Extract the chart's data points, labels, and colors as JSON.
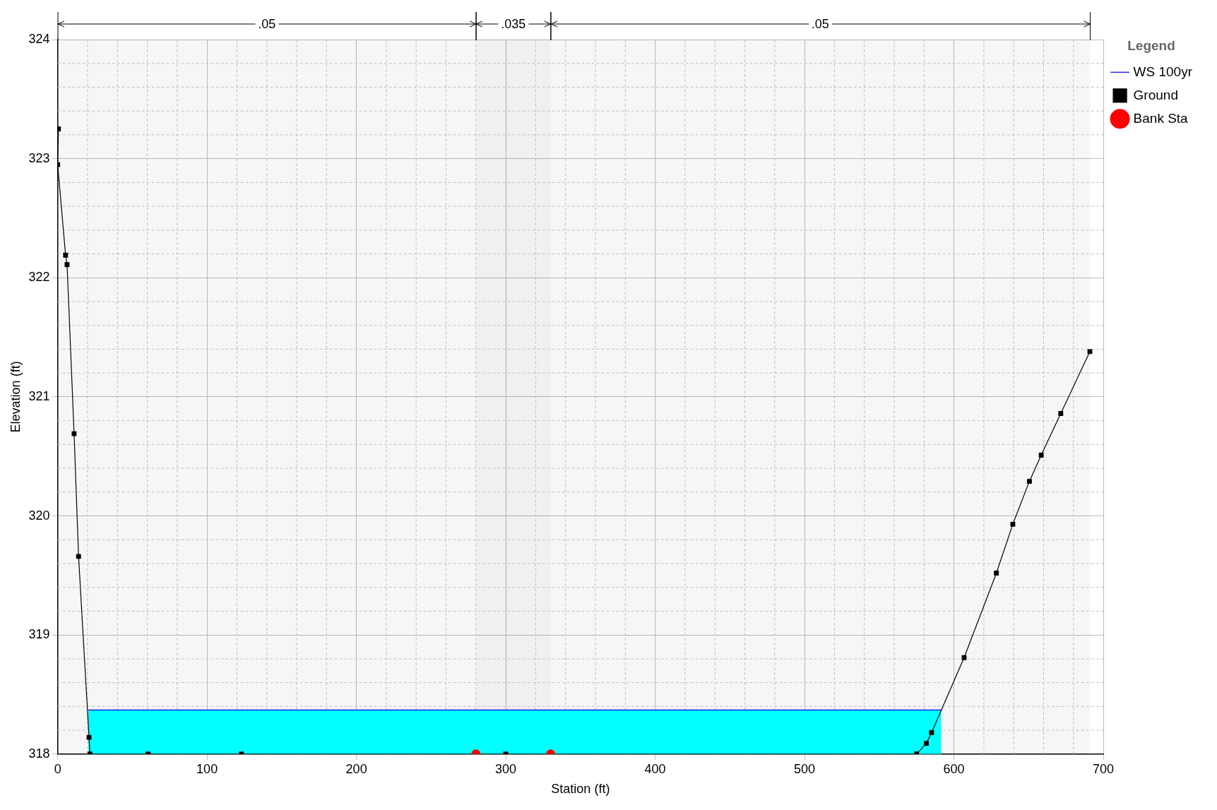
{
  "chart_data": {
    "type": "line",
    "xlabel": "Station (ft)",
    "ylabel": "Elevation (ft)",
    "legend_title": "Legend",
    "legend": "right",
    "grid": true,
    "xlim": [
      0,
      700
    ],
    "xticks": [
      0,
      100,
      200,
      300,
      400,
      500,
      600,
      700
    ],
    "ylim": [
      318,
      324
    ],
    "yticks": [
      318,
      319,
      320,
      321,
      322,
      323,
      324
    ],
    "bands": [
      {
        "axis": "x",
        "from": 0,
        "to": 280,
        "label": ".05"
      },
      {
        "axis": "x",
        "from": 280,
        "to": 330,
        "label": ".035"
      },
      {
        "axis": "x",
        "from": 330,
        "to": 691,
        "label": ".05"
      }
    ],
    "series": [
      {
        "name": "WS 100yr",
        "type": "area",
        "color": "#0000ff",
        "marker": "none",
        "x": [
          20.5,
          591.5
        ],
        "values": [
          318.37,
          318.37
        ]
      },
      {
        "name": "Ground",
        "color": "#000000",
        "marker": "square",
        "x": [
          0.5,
          0,
          5.3,
          6.3,
          11,
          14,
          21,
          21.6,
          60.6,
          123,
          300,
          575,
          581.5,
          585,
          606.8,
          628.4,
          639.4,
          650.5,
          658.4,
          671.5,
          691
        ],
        "values": [
          323.25,
          322.95,
          322.19,
          322.11,
          320.69,
          319.66,
          318.14,
          318,
          318,
          318,
          318,
          318,
          318.09,
          318.18,
          318.81,
          319.52,
          319.93,
          320.29,
          320.51,
          320.86,
          321.38
        ]
      },
      {
        "name": "Bank Sta",
        "type": "scatter",
        "color": "#ff0000",
        "marker": "circle",
        "x": [
          280,
          330
        ],
        "values": [
          318,
          318
        ]
      }
    ]
  }
}
